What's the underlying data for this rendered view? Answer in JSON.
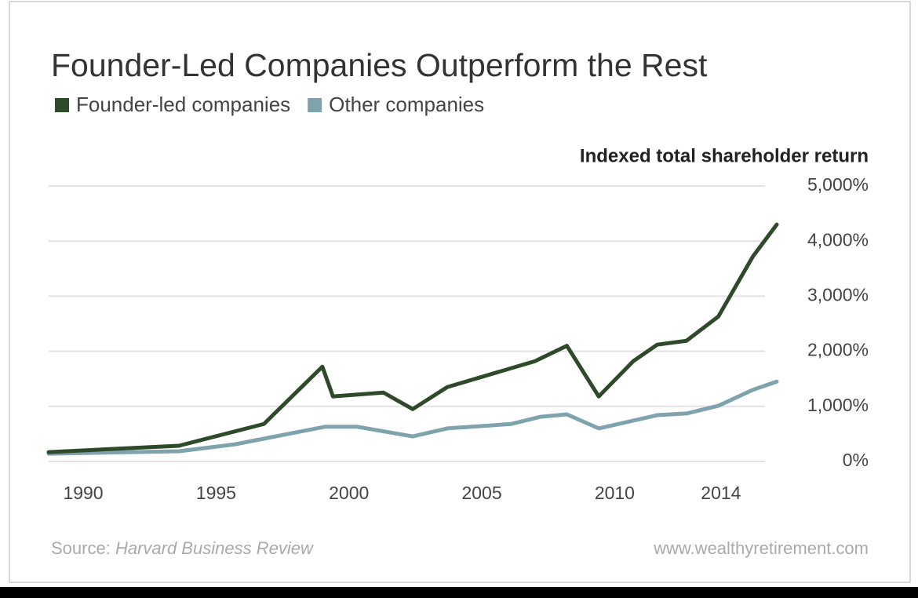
{
  "chart_data": {
    "type": "line",
    "title": "Founder-Led Companies Outperform the Rest",
    "y_axis_label": "Indexed total shareholder return",
    "source_prefix": "Source:",
    "source_name": "Harvard Business Review",
    "website": "www.wealthyretirement.com",
    "xlim": [
      1988.7,
      2016.1
    ],
    "xticks": [
      1990,
      1995,
      2000,
      2005,
      2010,
      2014
    ],
    "ylim": [
      0,
      5000
    ],
    "yticks": [
      {
        "value": 0,
        "label": "0%"
      },
      {
        "value": 1000,
        "label": "1,000%"
      },
      {
        "value": 2000,
        "label": "2,000%"
      },
      {
        "value": 3000,
        "label": "3,000%"
      },
      {
        "value": 4000,
        "label": "4,000%"
      },
      {
        "value": 5000,
        "label": "5,000%"
      }
    ],
    "grid": true,
    "series": [
      {
        "name": "Founder-led companies",
        "color": "#2f4a2a",
        "x": [
          1988.7,
          1993.6,
          1996.8,
          1999.0,
          1999.4,
          2001.3,
          2002.4,
          2003.7,
          2007.0,
          2008.2,
          2009.4,
          2010.7,
          2011.6,
          2012.7,
          2013.9,
          2015.2,
          2016.1
        ],
        "values": [
          170,
          285,
          680,
          1720,
          1180,
          1250,
          950,
          1350,
          1820,
          2100,
          1180,
          1820,
          2120,
          2190,
          2630,
          3720,
          4300
        ]
      },
      {
        "name": "Other companies",
        "color": "#7fa3ad",
        "x": [
          1988.7,
          1993.6,
          1995.7,
          1999.1,
          2000.3,
          2002.4,
          2003.7,
          2006.1,
          2007.2,
          2008.2,
          2009.4,
          2011.6,
          2012.7,
          2013.9,
          2015.2,
          2016.1
        ],
        "values": [
          140,
          185,
          310,
          630,
          630,
          455,
          600,
          680,
          810,
          855,
          600,
          840,
          870,
          1010,
          1300,
          1450
        ]
      }
    ]
  }
}
